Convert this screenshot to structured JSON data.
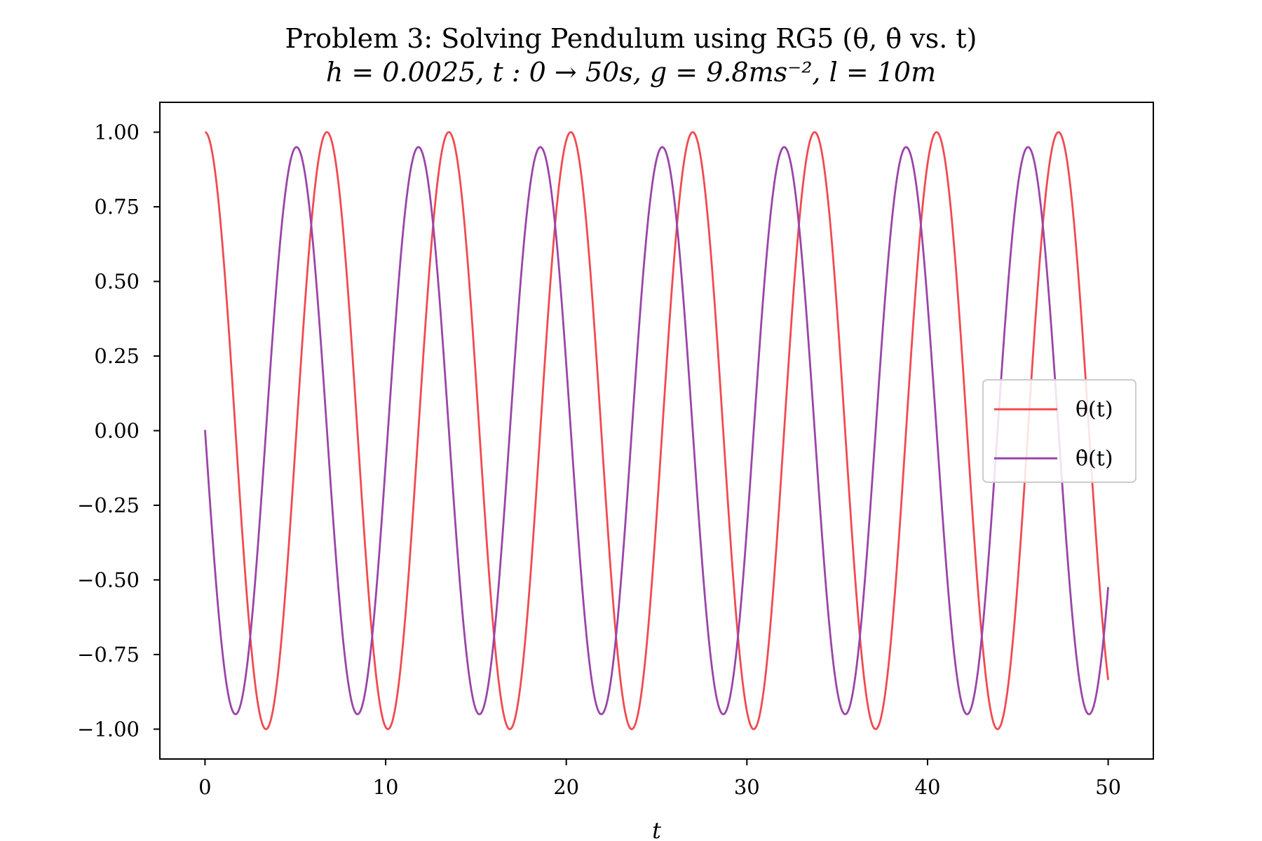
{
  "chart_data": {
    "type": "line",
    "title": "Problem 3: Solving Pendulum using RG5 (θ, θ̇ vs. t)",
    "subtitle": "h = 0.0025, t : 0 → 50s, g = 9.8ms⁻², l = 10m",
    "xlabel": "t",
    "ylabel": "",
    "xlim": [
      -2.5,
      52.5
    ],
    "ylim": [
      -1.1,
      1.1
    ],
    "xticks": [
      0,
      10,
      20,
      30,
      40,
      50
    ],
    "xtick_labels": [
      "0",
      "10",
      "20",
      "30",
      "40",
      "50"
    ],
    "yticks": [
      1.0,
      0.75,
      0.5,
      0.25,
      0.0,
      -0.25,
      -0.5,
      -0.75,
      -1.0
    ],
    "ytick_labels": [
      "1.00",
      "0.75",
      "0.50",
      "0.25",
      "0.00",
      "−0.25",
      "−0.50",
      "−0.75",
      "−1.00"
    ],
    "grid": false,
    "legend_position": "center-right",
    "series": [
      {
        "name": "θ(t)",
        "color": "#f04a50",
        "x_start": 0,
        "x_end": 50,
        "period": 6.75,
        "peaks": [
          0,
          6.75,
          13.5,
          20.25,
          27,
          33.75,
          40.5,
          47.25
        ],
        "troughs": [
          3.375,
          10.125,
          16.875,
          23.625,
          30.375,
          37.125,
          43.875
        ],
        "max": 1.0,
        "min": -1.0,
        "y_start": 1.0,
        "y_end": -0.77
      },
      {
        "name": "θ̇(t)",
        "color": "#9a44a8",
        "x_start": 0,
        "x_end": 50,
        "period": 6.75,
        "peaks": [
          5.06,
          11.81,
          18.56,
          25.31,
          32.06,
          38.81,
          45.56
        ],
        "troughs": [
          1.69,
          8.44,
          15.19,
          21.94,
          28.69,
          35.44,
          42.19,
          48.94
        ],
        "max": 0.95,
        "min": -0.95,
        "y_start": 0.0,
        "y_end": -0.59
      }
    ]
  }
}
